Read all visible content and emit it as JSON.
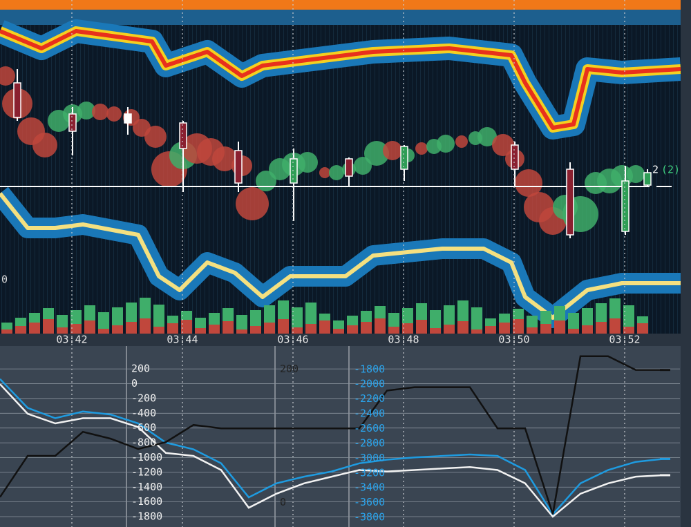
{
  "chart_data": [
    {
      "type": "heatmap",
      "xlim": [
        40.7,
        53.0
      ],
      "xticks": [
        {
          "value": 42,
          "label": "03:42"
        },
        {
          "value": 44,
          "label": "03:44"
        },
        {
          "value": 46,
          "label": "03:46"
        },
        {
          "value": 48,
          "label": "03:48"
        },
        {
          "value": 50,
          "label": "03:50"
        },
        {
          "value": 52,
          "label": "03:52"
        }
      ],
      "annotations": [
        "0",
        "2",
        "(2)"
      ]
    },
    {
      "type": "line",
      "xlim": [
        40.7,
        53.0
      ],
      "x": [
        40.7,
        41.2,
        41.7,
        42.2,
        42.7,
        43.2,
        43.7,
        44.2,
        44.7,
        45.2,
        45.7,
        46.2,
        46.7,
        47.2,
        47.7,
        48.2,
        48.7,
        49.2,
        49.7,
        50.2,
        50.7,
        51.2,
        51.7,
        52.2,
        52.7
      ],
      "ylim": [
        -1940,
        510
      ],
      "yticks": [
        200,
        0,
        -200,
        -400,
        -600,
        -800,
        -1000,
        -1200,
        -1400,
        -1600,
        -1800
      ],
      "y2lim": [
        -3930,
        -1485
      ],
      "y2ticks": [
        -1800,
        -2000,
        -2200,
        -2400,
        -2600,
        -2800,
        -3000,
        -3200,
        -3400,
        -3600,
        -3800
      ],
      "y3lim": [
        -37,
        235
      ],
      "y3ticks": [
        200,
        0
      ],
      "grid": true,
      "series": [
        {
          "name": "blue",
          "color": "#1e9be0",
          "axis": "y2",
          "values": [
            -1930,
            -2320,
            -2460,
            -2370,
            -2410,
            -2530,
            -2790,
            -2880,
            -3070,
            -3530,
            -3340,
            -3250,
            -3180,
            -3070,
            -3020,
            -2990,
            -2970,
            -2950,
            -2970,
            -3160,
            -3760,
            -3340,
            -3160,
            -3050,
            -3010
          ]
        },
        {
          "name": "white",
          "color": "#f2f2f2",
          "axis": "y2",
          "values": [
            -2000,
            -2400,
            -2530,
            -2460,
            -2460,
            -2580,
            -2930,
            -2970,
            -3160,
            -3670,
            -3480,
            -3340,
            -3250,
            -3160,
            -3180,
            -3160,
            -3140,
            -3120,
            -3160,
            -3340,
            -3790,
            -3480,
            -3340,
            -3250,
            -3230
          ]
        },
        {
          "name": "black",
          "color": "#111111",
          "axis": "y",
          "values": [
            -1535,
            -977,
            -977,
            -651,
            -744,
            -884,
            -791,
            -558,
            -605,
            -605,
            -605,
            -605,
            -605,
            -605,
            -93,
            -47,
            -47,
            -47,
            -605,
            -605,
            -1767,
            372,
            372,
            186,
            186
          ]
        }
      ]
    }
  ]
}
